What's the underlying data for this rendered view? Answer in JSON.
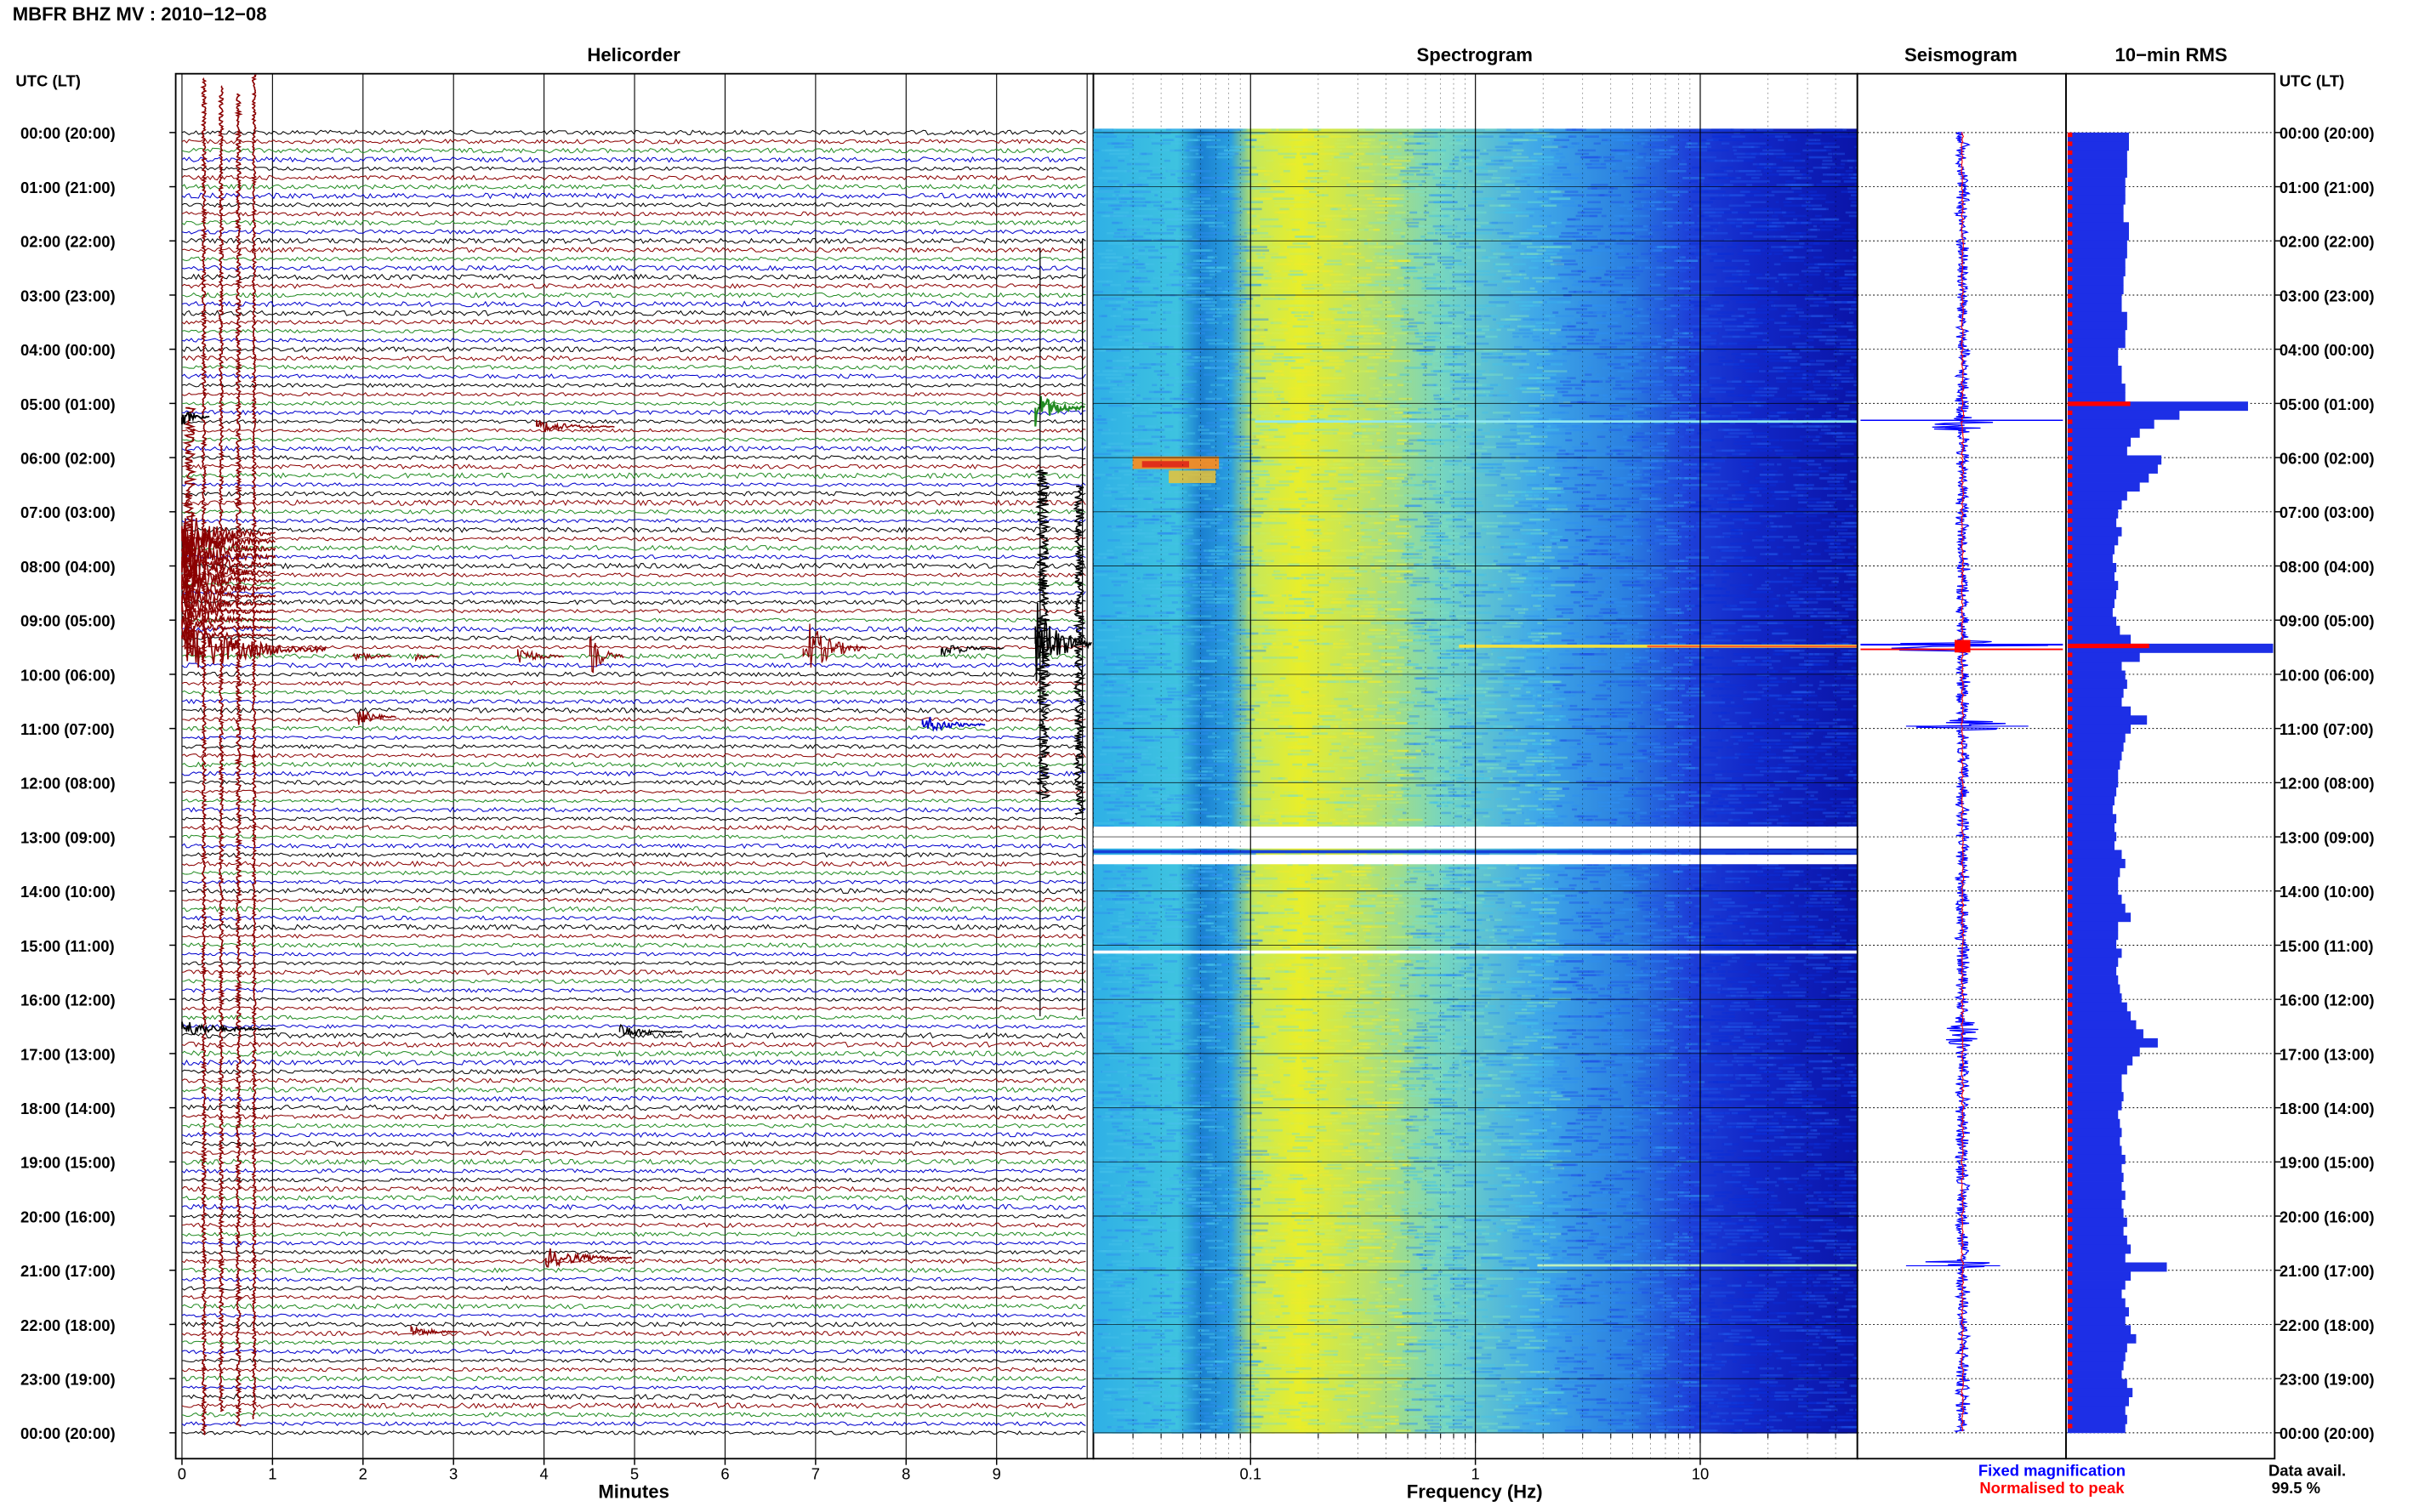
{
  "header": {
    "station_title": "MBFR BHZ MV : 2010−12−08",
    "time_axis_label_left": "UTC (LT)",
    "time_axis_label_right": "UTC (LT)"
  },
  "panels": {
    "helicorder": "Helicorder",
    "spectrogram": "Spectrogram",
    "seismogram": "Seismogram",
    "rms": "10−min RMS"
  },
  "footer": {
    "helicorder_xlabel": "Minutes",
    "spectrogram_xlabel": "Frequency (Hz)",
    "legend_fixed": "Fixed magnification",
    "legend_normalised": "Normalised to peak",
    "data_avail_label": "Data avail.",
    "data_avail_value": "99.5 %"
  },
  "colors": {
    "trace_cycle": [
      "#000000",
      "#8b0000",
      "#228b22",
      "#0000cd"
    ],
    "fixed_magnification": "#0000ff",
    "normalised": "#ff0000"
  },
  "chart_data": [
    {
      "type": "line",
      "title": "Helicorder",
      "xlabel": "Minutes",
      "x_ticks": [
        "0",
        "1",
        "2",
        "3",
        "4",
        "5",
        "6",
        "7",
        "8",
        "9"
      ],
      "xlim": [
        0,
        10
      ],
      "row_span_minutes": 10,
      "rows": 145,
      "series_colors_cycle": [
        "black",
        "dark red",
        "green",
        "blue"
      ],
      "notable_events_utc": [
        {
          "time": "00:00–20:00",
          "minute": 0.5,
          "note": "large dark red saturated traces"
        },
        {
          "time": "09:40",
          "minute": 7.0,
          "note": "event"
        },
        {
          "time": "09:40",
          "minute": 9.6,
          "note": "large black event"
        },
        {
          "time": "21:00",
          "minute": 4.3,
          "note": "event"
        }
      ]
    },
    {
      "type": "heatmap",
      "title": "Spectrogram",
      "xlabel": "Frequency (Hz)",
      "x_scale": "log",
      "x_ticks": [
        "0.1",
        "1",
        "10"
      ],
      "xlim": [
        0.02,
        50
      ],
      "colormap": "jet",
      "gaps_utc": [
        "12:50–13:00",
        "13:10–13:20",
        "15:00"
      ]
    },
    {
      "type": "line",
      "title": "Seismogram",
      "legend": [
        "Fixed magnification",
        "Normalised to peak"
      ],
      "spikes_utc": [
        "05:20",
        "09:40",
        "11:00",
        "21:00"
      ]
    },
    {
      "type": "bar",
      "title": "10−min RMS",
      "orientation": "horizontal",
      "unit_note": "relative",
      "baseline_value": 0.32,
      "values_relative": [
        0.34,
        0.34,
        0.33,
        0.33,
        0.33,
        0.32,
        0.32,
        0.32,
        0.31,
        0.31,
        0.34,
        0.34,
        0.33,
        0.33,
        0.32,
        0.32,
        0.31,
        0.31,
        0.3,
        0.3,
        0.33,
        0.33,
        0.32,
        0.32,
        0.28,
        0.28,
        0.3,
        0.3,
        0.32,
        0.32,
        1.0,
        0.62,
        0.48,
        0.4,
        0.35,
        0.33,
        0.52,
        0.5,
        0.45,
        0.4,
        0.33,
        0.3,
        0.28,
        0.27,
        0.3,
        0.28,
        0.26,
        0.25,
        0.27,
        0.26,
        0.28,
        0.27,
        0.26,
        0.25,
        0.27,
        0.29,
        0.35,
        1.3,
        0.4,
        0.3,
        0.32,
        0.33,
        0.31,
        0.3,
        0.35,
        0.44,
        0.35,
        0.32,
        0.31,
        0.3,
        0.29,
        0.28,
        0.28,
        0.27,
        0.26,
        0.25,
        0.27,
        0.26,
        0.27,
        0.26,
        0.3,
        0.32,
        0.29,
        0.28,
        0.28,
        0.3,
        0.32,
        0.35,
        0.28,
        0.28,
        0.27,
        0.3,
        0.28,
        0.27,
        0.28,
        0.29,
        0.3,
        0.33,
        0.35,
        0.38,
        0.42,
        0.5,
        0.4,
        0.36,
        0.33,
        0.3,
        0.3,
        0.31,
        0.3,
        0.28,
        0.29,
        0.3,
        0.29,
        0.3,
        0.32,
        0.3,
        0.31,
        0.3,
        0.32,
        0.3,
        0.31,
        0.33,
        0.31,
        0.33,
        0.35,
        0.32,
        0.55,
        0.35,
        0.32,
        0.3,
        0.32,
        0.34,
        0.32,
        0.35,
        0.38,
        0.33,
        0.32,
        0.31,
        0.3,
        0.33,
        0.36,
        0.34,
        0.32,
        0.33,
        0.32
      ]
    }
  ],
  "time_labels": [
    "00:00 (20:00)",
    "01:00 (21:00)",
    "02:00 (22:00)",
    "03:00 (23:00)",
    "04:00 (00:00)",
    "05:00 (01:00)",
    "06:00 (02:00)",
    "07:00 (03:00)",
    "08:00 (04:00)",
    "09:00 (05:00)",
    "10:00 (06:00)",
    "11:00 (07:00)",
    "12:00 (08:00)",
    "13:00 (09:00)",
    "14:00 (10:00)",
    "15:00 (11:00)",
    "16:00 (12:00)",
    "17:00 (13:00)",
    "18:00 (14:00)",
    "19:00 (15:00)",
    "20:00 (16:00)",
    "21:00 (17:00)",
    "22:00 (18:00)",
    "23:00 (19:00)",
    "00:00 (20:00)"
  ]
}
